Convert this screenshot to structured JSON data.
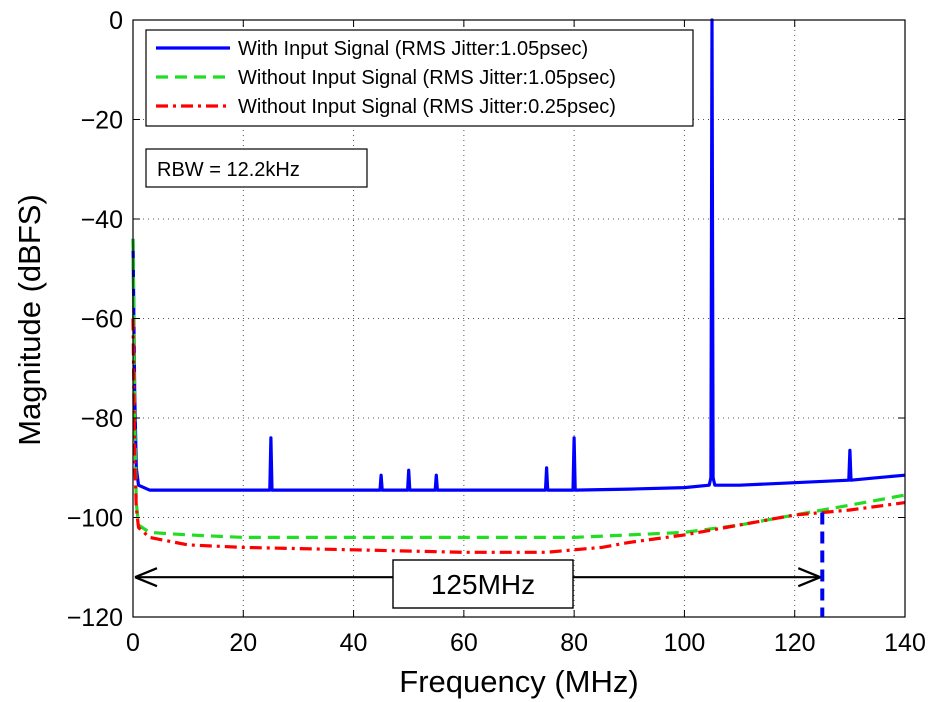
{
  "chart_data": {
    "type": "line",
    "xlabel": "Frequency (MHz)",
    "ylabel": "Magnitude (dBFS)",
    "xlim": [
      0,
      140
    ],
    "ylim": [
      -120,
      0
    ],
    "xticks": [
      0,
      20,
      40,
      60,
      80,
      100,
      120,
      140
    ],
    "yticks": [
      -120,
      -100,
      -80,
      -60,
      -40,
      -20,
      0
    ],
    "xtick_labels": [
      "0",
      "20",
      "40",
      "60",
      "80",
      "100",
      "120",
      "140"
    ],
    "ytick_labels": [
      "−120",
      "−100",
      "−80",
      "−60",
      "−40",
      "−20",
      "0"
    ],
    "grid": true,
    "legend_position": "top-left",
    "series": [
      {
        "name": "With Input Signal (RMS Jitter:1.05psec)",
        "color": "#0000ff",
        "style": "solid",
        "x": [
          0,
          0.3,
          0.6,
          1,
          3,
          10,
          20,
          24.8,
          25,
          25.2,
          30,
          40,
          44.8,
          45,
          45.2,
          49.8,
          50,
          50.2,
          54.8,
          55,
          55.2,
          60,
          74.8,
          75,
          75.2,
          79.8,
          80,
          80.2,
          90,
          100,
          104.5,
          104.8,
          105,
          105.2,
          105.5,
          110,
          120,
          129.8,
          130,
          130.2,
          135,
          140
        ],
        "y": [
          -44,
          -75,
          -90,
          -93.5,
          -94.5,
          -94.5,
          -94.5,
          -94.5,
          -84,
          -94.5,
          -94.5,
          -94.5,
          -94.5,
          -91.5,
          -94.5,
          -94.5,
          -90.5,
          -94.5,
          -94.5,
          -91.5,
          -94.5,
          -94.5,
          -94.5,
          -90,
          -94.5,
          -94.5,
          -84,
          -94.5,
          -94.3,
          -94,
          -93.5,
          -92,
          0,
          -92,
          -93.5,
          -93.5,
          -93,
          -92.5,
          -86.5,
          -92.5,
          -92,
          -91.5
        ]
      },
      {
        "name": "Without Input Signal (RMS Jitter:1.05psec)",
        "color": "#22dd22",
        "style": "dashed",
        "x": [
          0,
          0.3,
          0.6,
          1,
          3,
          10,
          20,
          40,
          60,
          80,
          90,
          100,
          110,
          120,
          130,
          140
        ],
        "y": [
          -44,
          -80,
          -97,
          -101.5,
          -103,
          -103.5,
          -104,
          -104,
          -104,
          -104,
          -103.5,
          -103,
          -101.5,
          -99.5,
          -97.5,
          -95.5
        ]
      },
      {
        "name": "Without Input Signal (RMS Jitter:0.25psec)",
        "color": "#ff0000",
        "style": "dashdot",
        "x": [
          0,
          0.3,
          0.6,
          1,
          3,
          10,
          20,
          40,
          60,
          75,
          80,
          85,
          90,
          100,
          110,
          120,
          130,
          140
        ],
        "y": [
          -60,
          -88,
          -98,
          -102,
          -104,
          -105.5,
          -106,
          -106.5,
          -107,
          -107,
          -106.5,
          -106,
          -105,
          -103.5,
          -101.5,
          -99.5,
          -98.5,
          -97
        ]
      }
    ],
    "annotations": {
      "rbw": "RBW = 12.2kHz",
      "span_label": "125MHz",
      "span_from": 0,
      "span_to": 125,
      "span_y": -112,
      "marker_x": 125,
      "marker_y_top": -99,
      "marker_y_bottom": -120
    }
  }
}
